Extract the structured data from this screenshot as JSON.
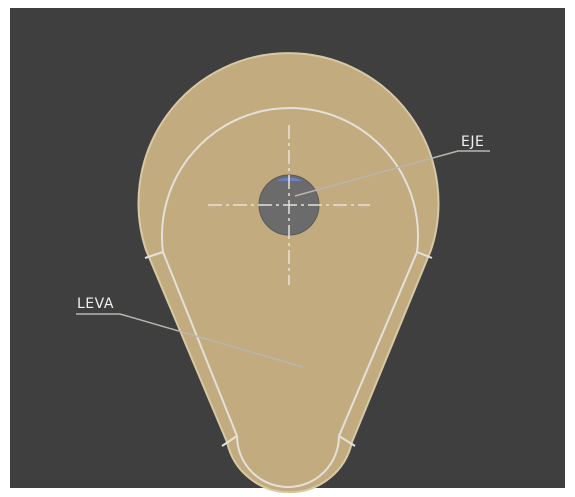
{
  "diagram": {
    "labels": {
      "shaft": "EJE",
      "cam": "LEVA"
    },
    "colors": {
      "frame": "#ffffff",
      "background": "#3f3f3f",
      "cam_fill": "#c2ab7e",
      "cam_edge": "#d8c9a6",
      "inner_outline": "#e4e1da",
      "shaft_fill": "#6b6b6b",
      "shaft_highlight": "#6a7ec8",
      "centerline": "#e6e2da",
      "leader": "#b9b6ad",
      "label_text": "#f0f0f0"
    }
  }
}
